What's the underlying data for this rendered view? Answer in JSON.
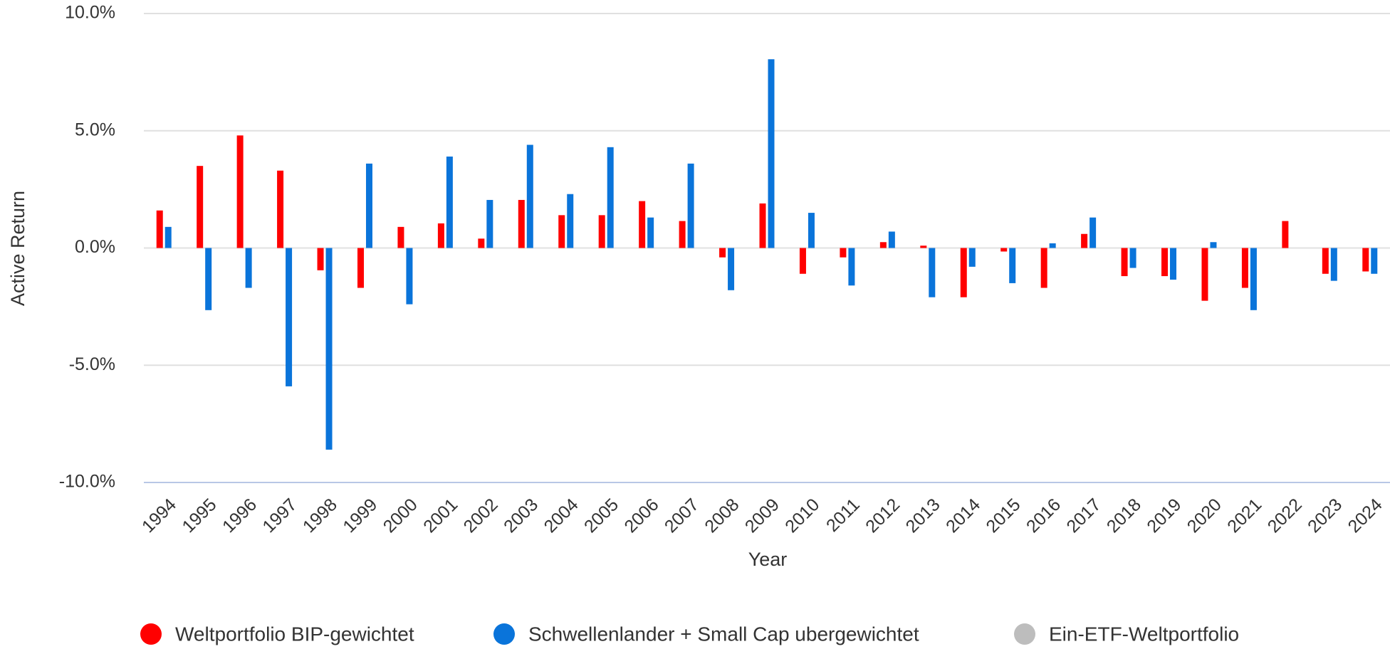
{
  "chart_data": {
    "type": "bar",
    "x_label": "Year",
    "y_label": "Active Return",
    "categories": [
      "1994",
      "1995",
      "1996",
      "1997",
      "1998",
      "1999",
      "2000",
      "2001",
      "2002",
      "2003",
      "2004",
      "2005",
      "2006",
      "2007",
      "2008",
      "2009",
      "2010",
      "2011",
      "2012",
      "2013",
      "2014",
      "2015",
      "2016",
      "2017",
      "2018",
      "2019",
      "2020",
      "2021",
      "2022",
      "2023",
      "2024"
    ],
    "series": [
      {
        "name": "Weltportfolio BIP-gewichtet",
        "color": "#ff0000",
        "values": [
          1.6,
          3.5,
          4.8,
          3.3,
          -0.95,
          -1.7,
          0.9,
          1.05,
          0.4,
          2.05,
          1.4,
          1.4,
          2.0,
          1.15,
          -0.4,
          1.9,
          -1.1,
          -0.4,
          0.25,
          0.1,
          -2.1,
          -0.15,
          -1.7,
          0.6,
          -1.2,
          -1.2,
          -2.25,
          -1.7,
          1.15,
          -1.1,
          -1.0
        ]
      },
      {
        "name": "Schwellenlander + Small Cap ubergewichtet",
        "color": "#0a74da",
        "values": [
          0.9,
          -2.65,
          -1.7,
          -5.9,
          -8.6,
          3.6,
          -2.4,
          3.9,
          2.05,
          4.4,
          2.3,
          4.3,
          1.3,
          3.6,
          -1.8,
          8.05,
          1.5,
          -1.6,
          0.7,
          -2.1,
          -0.8,
          -1.5,
          0.2,
          1.3,
          -0.85,
          -1.35,
          0.25,
          -2.65,
          0,
          -1.4,
          -1.1
        ]
      },
      {
        "name": "Ein-ETF-Weltportfolio",
        "color": "#bdbdbd",
        "values": [
          0,
          0,
          0,
          0,
          0,
          0,
          0,
          0,
          0,
          0,
          0,
          0,
          0,
          0,
          0,
          0,
          0,
          0,
          0,
          0,
          0,
          0,
          0,
          0,
          0,
          0,
          0,
          0,
          0,
          0,
          0
        ]
      }
    ],
    "ylim": [
      -10,
      10
    ],
    "yticks": [
      {
        "value": -10,
        "label": "-10.0%"
      },
      {
        "value": -5,
        "label": "-5.0%"
      },
      {
        "value": 0,
        "label": "0.0%"
      },
      {
        "value": 5,
        "label": "5.0%"
      },
      {
        "value": 10,
        "label": "10.0%"
      }
    ],
    "grid": true,
    "legend": "bottom"
  }
}
